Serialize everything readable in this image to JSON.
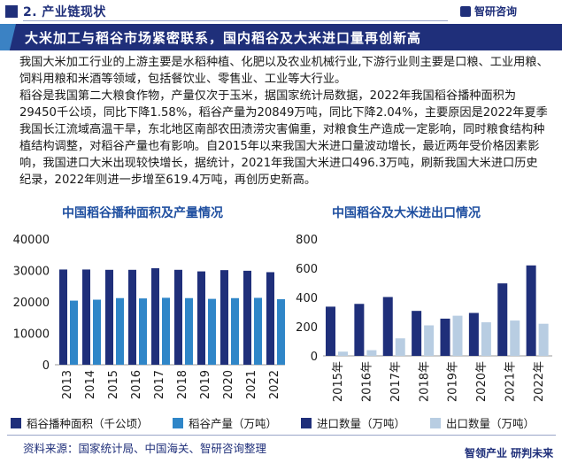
{
  "header": {
    "section_title": "2. 产业链现状",
    "logo_text": "智研咨询",
    "banner_title": "大米加工与稻谷市场紧密联系，国内稻谷及大米进口量再创新高"
  },
  "body": {
    "paragraph1": "我国大米加工行业的上游主要是水稻种植、化肥以及农业机械行业,下游行业则主要是口粮、工业用粮、饲料用粮和米酒等领域，包括餐饮业、零售业、工业等大行业。",
    "paragraph2": "稻谷是我国第二大粮食作物，产量仅次于玉米，据国家统计局数据，2022年我国稻谷播种面积为29450千公顷，同比下降1.58%，稻谷产量为20849万吨，同比下降2.04%，主要原因是2022年夏季我国长江流域高温干旱，东北地区南部农田渍涝灾害偏重，对粮食生产造成一定影响，同时粮食结构种植结构调整，对稻谷产量也有影响。自2015年以来我国大米进口量波动增长，最近两年受价格因素影响，我国进口大米出现较快增长，据统计，2021年我国大米进口496.3万吨，刷新我国大米进口历史纪录，2022年则进一步增至619.4万吨，再创历史新高。"
  },
  "footer": {
    "source": "资料来源：国家统计局、中国海关、智研咨询整理",
    "logo_text": "智领产业  研判未来"
  },
  "chart_data": [
    {
      "type": "bar",
      "title": "中国稻谷播种面积及产量情况",
      "categories": [
        "2013",
        "2014",
        "2015",
        "2016",
        "2017",
        "2018",
        "2019",
        "2020",
        "2021",
        "2022"
      ],
      "series": [
        {
          "name": "稻谷播种面积（千公顷）",
          "color": "#1f2f7a",
          "values": [
            30300,
            30300,
            30200,
            30200,
            30700,
            30200,
            29700,
            30100,
            29900,
            29450
          ]
        },
        {
          "name": "稻谷产量（万吨）",
          "color": "#2f86c8",
          "values": [
            20400,
            20700,
            21200,
            21100,
            21300,
            21200,
            20960,
            21190,
            21280,
            20849
          ]
        }
      ],
      "ylim": [
        0,
        40000
      ],
      "yticks": [
        "0",
        "10000",
        "20000",
        "30000",
        "40000"
      ],
      "yticks_values": [
        0,
        10000,
        20000,
        30000,
        40000
      ],
      "legend": "bottom",
      "grid": false
    },
    {
      "type": "bar",
      "title": "中国稻谷及大米进出口情况",
      "categories": [
        "2015年",
        "2016年",
        "2017年",
        "2018年",
        "2019年",
        "2020年",
        "2021年",
        "2022年"
      ],
      "series": [
        {
          "name": "进口数量（万吨）",
          "color": "#1f2f7a",
          "values": [
            337,
            356,
            403,
            308,
            255,
            294,
            496.3,
            619.4
          ]
        },
        {
          "name": "出口数量（万吨）",
          "color": "#b8cde2",
          "values": [
            29,
            39,
            120,
            209,
            275,
            230,
            242,
            220
          ]
        }
      ],
      "ylim": [
        0,
        800
      ],
      "yticks": [
        "0",
        "200",
        "400",
        "600",
        "800"
      ],
      "yticks_values": [
        0,
        200,
        400,
        600,
        800
      ],
      "legend": "bottom",
      "grid": false
    }
  ]
}
